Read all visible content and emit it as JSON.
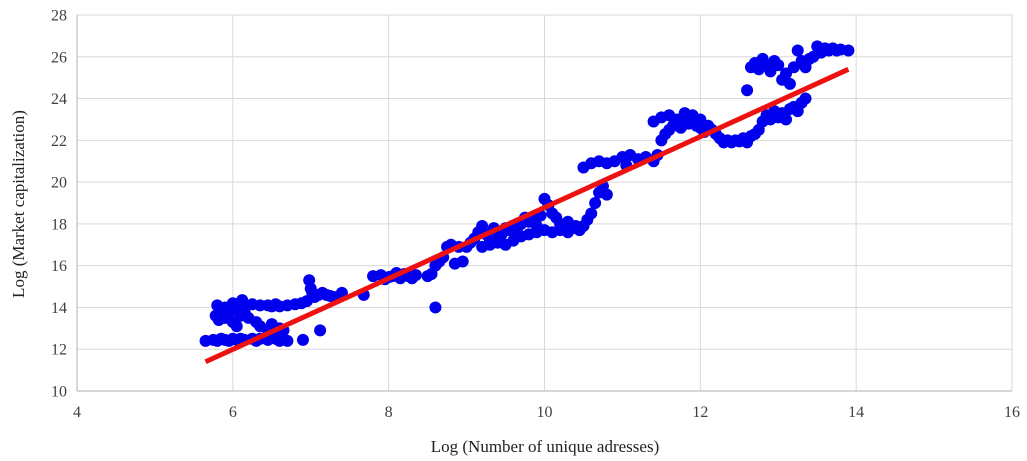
{
  "chart_data": {
    "type": "scatter",
    "title": "",
    "xlabel": "Log (Number of unique adresses)",
    "ylabel": "Log (Market capitalization)",
    "xlim": [
      4,
      16
    ],
    "ylim": [
      10,
      28
    ],
    "x_ticks": [
      "4",
      "6",
      "8",
      "10",
      "12",
      "14",
      "16"
    ],
    "y_ticks": [
      "10",
      "12",
      "14",
      "16",
      "18",
      "20",
      "22",
      "24",
      "26",
      "28"
    ],
    "grid": true,
    "legend": "none",
    "colors": {
      "points": "#0000ee",
      "trendline": "#ee1111",
      "grid": "#d9d9d9",
      "axis": "#bfbfbf"
    },
    "trendline": {
      "type": "linear",
      "x": [
        5.65,
        13.9
      ],
      "y": [
        11.4,
        25.4
      ]
    },
    "series": [
      {
        "points": [
          [
            5.65,
            12.4
          ],
          [
            5.75,
            12.45
          ],
          [
            5.8,
            12.4
          ],
          [
            5.85,
            12.5
          ],
          [
            5.9,
            12.45
          ],
          [
            5.95,
            12.4
          ],
          [
            6.0,
            12.5
          ],
          [
            6.05,
            12.45
          ],
          [
            6.1,
            12.5
          ],
          [
            6.15,
            12.45
          ],
          [
            6.25,
            12.5
          ],
          [
            6.3,
            12.4
          ],
          [
            6.35,
            12.5
          ],
          [
            6.45,
            12.45
          ],
          [
            6.55,
            12.5
          ],
          [
            6.6,
            12.4
          ],
          [
            6.7,
            12.4
          ],
          [
            6.9,
            12.45
          ],
          [
            5.78,
            13.6
          ],
          [
            5.82,
            13.4
          ],
          [
            5.85,
            13.8
          ],
          [
            5.9,
            13.5
          ],
          [
            5.95,
            13.7
          ],
          [
            6.0,
            13.3
          ],
          [
            6.05,
            13.9
          ],
          [
            6.1,
            13.6
          ],
          [
            6.15,
            13.8
          ],
          [
            6.2,
            13.5
          ],
          [
            5.8,
            14.1
          ],
          [
            5.9,
            14.0
          ],
          [
            6.0,
            14.2
          ],
          [
            6.1,
            14.1
          ],
          [
            6.12,
            14.35
          ],
          [
            6.25,
            14.15
          ],
          [
            6.35,
            14.1
          ],
          [
            6.45,
            14.1
          ],
          [
            6.5,
            14.05
          ],
          [
            6.55,
            14.15
          ],
          [
            6.6,
            14.05
          ],
          [
            6.7,
            14.1
          ],
          [
            6.8,
            14.15
          ],
          [
            6.88,
            14.2
          ],
          [
            6.95,
            14.3
          ],
          [
            6.05,
            13.1
          ],
          [
            6.3,
            13.3
          ],
          [
            6.35,
            13.1
          ],
          [
            6.45,
            12.9
          ],
          [
            6.5,
            13.2
          ],
          [
            6.6,
            13.0
          ],
          [
            6.65,
            12.9
          ],
          [
            7.12,
            12.9
          ],
          [
            6.98,
            15.3
          ],
          [
            7.0,
            14.9
          ],
          [
            7.02,
            14.7
          ],
          [
            7.05,
            14.5
          ],
          [
            7.1,
            14.6
          ],
          [
            7.15,
            14.7
          ],
          [
            7.2,
            14.6
          ],
          [
            7.25,
            14.55
          ],
          [
            7.3,
            14.5
          ],
          [
            7.4,
            14.7
          ],
          [
            7.68,
            14.6
          ],
          [
            7.8,
            15.5
          ],
          [
            7.9,
            15.55
          ],
          [
            7.95,
            15.35
          ],
          [
            8.0,
            15.45
          ],
          [
            8.05,
            15.5
          ],
          [
            8.1,
            15.65
          ],
          [
            8.15,
            15.4
          ],
          [
            8.2,
            15.6
          ],
          [
            8.25,
            15.5
          ],
          [
            8.3,
            15.4
          ],
          [
            8.35,
            15.55
          ],
          [
            8.5,
            15.5
          ],
          [
            8.55,
            15.6
          ],
          [
            8.6,
            16.0
          ],
          [
            8.65,
            16.2
          ],
          [
            8.7,
            16.4
          ],
          [
            8.75,
            16.9
          ],
          [
            8.8,
            17.0
          ],
          [
            8.85,
            16.1
          ],
          [
            8.9,
            16.9
          ],
          [
            8.95,
            16.2
          ],
          [
            8.6,
            14.0
          ],
          [
            9.0,
            16.9
          ],
          [
            9.05,
            17.1
          ],
          [
            9.1,
            17.3
          ],
          [
            9.15,
            17.6
          ],
          [
            9.2,
            17.9
          ],
          [
            9.25,
            17.5
          ],
          [
            9.3,
            17.2
          ],
          [
            9.35,
            17.8
          ],
          [
            9.4,
            17.6
          ],
          [
            9.45,
            17.5
          ],
          [
            9.5,
            17.8
          ],
          [
            9.55,
            17.7
          ],
          [
            9.6,
            17.9
          ],
          [
            9.65,
            17.6
          ],
          [
            9.7,
            18.0
          ],
          [
            9.75,
            18.3
          ],
          [
            9.8,
            18.1
          ],
          [
            9.85,
            18.2
          ],
          [
            9.9,
            17.9
          ],
          [
            9.95,
            18.4
          ],
          [
            10.0,
            19.2
          ],
          [
            10.05,
            18.9
          ],
          [
            10.1,
            18.5
          ],
          [
            10.15,
            18.3
          ],
          [
            10.2,
            18.0
          ],
          [
            10.25,
            17.9
          ],
          [
            10.3,
            18.1
          ],
          [
            10.35,
            17.8
          ],
          [
            10.4,
            17.9
          ],
          [
            10.45,
            17.7
          ],
          [
            9.2,
            16.9
          ],
          [
            9.3,
            17.0
          ],
          [
            9.4,
            17.1
          ],
          [
            9.5,
            17.0
          ],
          [
            9.6,
            17.2
          ],
          [
            9.7,
            17.4
          ],
          [
            9.8,
            17.5
          ],
          [
            9.9,
            17.6
          ],
          [
            10.0,
            17.7
          ],
          [
            10.1,
            17.6
          ],
          [
            10.2,
            17.7
          ],
          [
            10.3,
            17.6
          ],
          [
            10.4,
            17.8
          ],
          [
            10.5,
            17.9
          ],
          [
            10.55,
            18.2
          ],
          [
            10.6,
            18.5
          ],
          [
            10.65,
            19.0
          ],
          [
            10.7,
            19.5
          ],
          [
            10.75,
            19.8
          ],
          [
            10.8,
            19.4
          ],
          [
            10.5,
            20.7
          ],
          [
            10.6,
            20.9
          ],
          [
            10.7,
            21.0
          ],
          [
            10.8,
            20.9
          ],
          [
            10.9,
            21.0
          ],
          [
            11.0,
            21.2
          ],
          [
            11.05,
            20.8
          ],
          [
            11.1,
            21.3
          ],
          [
            11.2,
            21.1
          ],
          [
            11.3,
            21.2
          ],
          [
            11.4,
            21.0
          ],
          [
            11.45,
            21.3
          ],
          [
            11.5,
            22.0
          ],
          [
            11.55,
            22.3
          ],
          [
            11.6,
            22.5
          ],
          [
            11.65,
            22.7
          ],
          [
            11.7,
            22.9
          ],
          [
            11.75,
            22.6
          ],
          [
            11.8,
            23.1
          ],
          [
            11.85,
            22.8
          ],
          [
            11.9,
            23.0
          ],
          [
            11.95,
            22.7
          ],
          [
            12.0,
            22.6
          ],
          [
            12.05,
            22.4
          ],
          [
            12.1,
            22.7
          ],
          [
            12.15,
            22.5
          ],
          [
            12.2,
            22.3
          ],
          [
            12.25,
            22.1
          ],
          [
            12.3,
            21.9
          ],
          [
            12.35,
            22.0
          ],
          [
            11.4,
            22.9
          ],
          [
            11.5,
            23.1
          ],
          [
            11.6,
            23.2
          ],
          [
            11.7,
            23.0
          ],
          [
            11.8,
            23.3
          ],
          [
            11.9,
            23.2
          ],
          [
            12.0,
            23.0
          ],
          [
            12.4,
            21.9
          ],
          [
            12.45,
            22.0
          ],
          [
            12.5,
            21.95
          ],
          [
            12.55,
            22.1
          ],
          [
            12.6,
            21.9
          ],
          [
            12.65,
            22.2
          ],
          [
            12.7,
            22.3
          ],
          [
            12.75,
            22.5
          ],
          [
            12.8,
            22.9
          ],
          [
            12.85,
            23.2
          ],
          [
            12.9,
            23.0
          ],
          [
            12.95,
            23.4
          ],
          [
            13.0,
            23.1
          ],
          [
            13.05,
            23.3
          ],
          [
            13.1,
            23.0
          ],
          [
            13.15,
            23.5
          ],
          [
            13.2,
            23.6
          ],
          [
            13.25,
            23.4
          ],
          [
            13.3,
            23.8
          ],
          [
            13.35,
            24.0
          ],
          [
            12.6,
            24.4
          ],
          [
            12.65,
            25.5
          ],
          [
            12.7,
            25.7
          ],
          [
            12.75,
            25.4
          ],
          [
            12.8,
            25.9
          ],
          [
            12.85,
            25.6
          ],
          [
            12.9,
            25.3
          ],
          [
            12.95,
            25.8
          ],
          [
            13.0,
            25.6
          ],
          [
            13.05,
            24.9
          ],
          [
            13.1,
            25.2
          ],
          [
            13.15,
            24.7
          ],
          [
            13.2,
            25.5
          ],
          [
            13.25,
            26.3
          ],
          [
            13.3,
            25.8
          ],
          [
            13.35,
            25.5
          ],
          [
            13.4,
            25.9
          ],
          [
            13.45,
            26.0
          ],
          [
            13.5,
            26.5
          ],
          [
            13.55,
            26.2
          ],
          [
            13.6,
            26.4
          ],
          [
            13.65,
            26.3
          ],
          [
            13.7,
            26.4
          ],
          [
            13.75,
            26.3
          ],
          [
            13.8,
            26.35
          ],
          [
            13.9,
            26.3
          ]
        ]
      }
    ]
  }
}
